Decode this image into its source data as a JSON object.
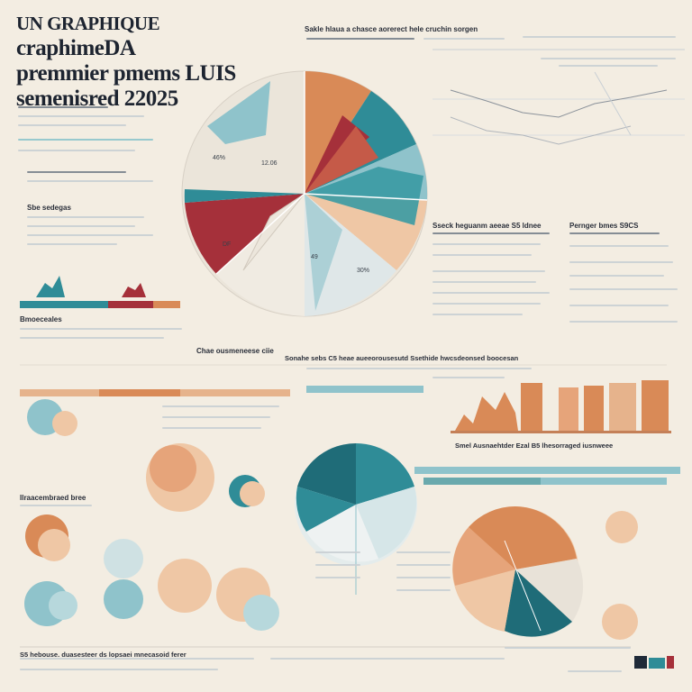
{
  "poster": {
    "title_lines": [
      "UN GRAPHIQUE",
      "craphimeDA",
      "premmier pmems LUIS",
      "semenisred 22025"
    ]
  },
  "top_header_text": "Sakle hlaua a chasce aorerect hele cruchin sorgen",
  "pie_labels": {
    "segment_a": "46%",
    "segment_b": "12.06",
    "segment_c": "DF",
    "segment_d": "30%",
    "segment_e": "49"
  },
  "right_panel": {
    "col1_heading": "Sseck heguanm aeeae S5 ldnee",
    "col2_heading": "Pernger bmes S9CS"
  },
  "left_notes": {
    "heading_1": "Sbe sedegas",
    "heading_2": "Bmoeceales",
    "bottom_label": "Chae ousmeneese ciie"
  },
  "middle_heading": "Sonahe sebs C5 heae aueeorousesutd Ssethide hwcsdeonsed boocesan",
  "bar_caption": "Smel Ausnaehtder Ezal B5 lhesorraged iusnweee",
  "bottom_left_label": "Ilraacembraed bree",
  "footer_text": "S5 hebouse. duasesteer ds lopsaei mnecasoid ferer",
  "colors": {
    "background": "#f3ede2",
    "teal": "#2f8c97",
    "light_teal": "#8fc3cb",
    "orange": "#d98a57",
    "peach": "#efc7a5",
    "red": "#a5303a",
    "navy": "#1f2a38"
  }
}
